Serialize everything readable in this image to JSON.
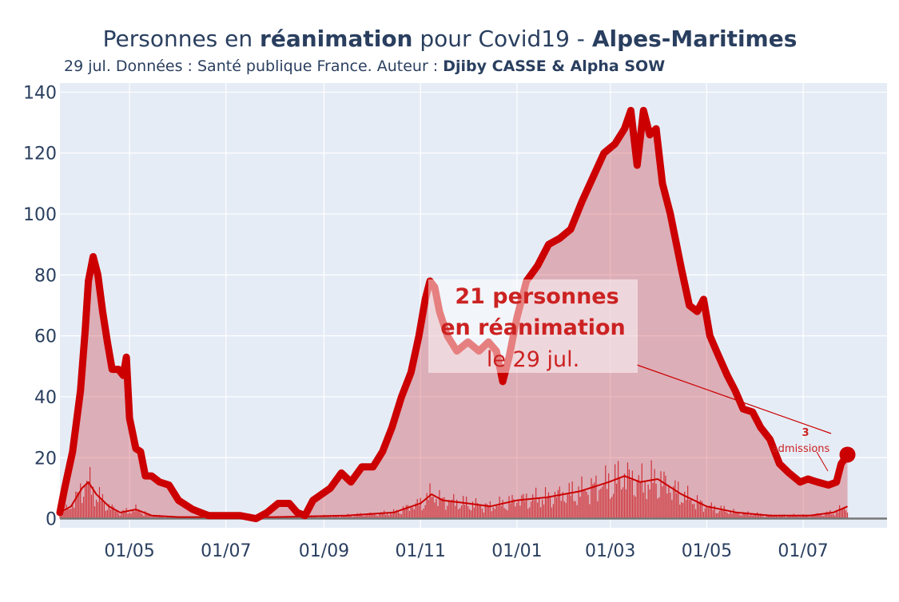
{
  "header": {
    "title_part1": "Personnes en ",
    "title_part2": "réanimation",
    "title_part3": " pour Covid19 - ",
    "title_part4": "Alpes-Maritimes",
    "subtitle_part1": "29 jul. Données : Santé publique France. Auteur : ",
    "subtitle_part2": "Djiby CASSE & Alpha SOW"
  },
  "annotation": {
    "line1": "21 personnes",
    "line2": "en réanimation",
    "line3": "le 29 jul."
  },
  "admissions_annotation": {
    "value": "3",
    "label": "admissions"
  },
  "colors": {
    "main": "#cc0000",
    "fill": "rgba(200,30,40,0.30)",
    "plot_bg": "#e5ecf6",
    "grid": "#ffffff",
    "text": "#2a3f5f"
  },
  "chart_data": {
    "type": "area",
    "title": "Personnes en réanimation pour Covid19 - Alpes-Maritimes",
    "ylim": [
      -3,
      143
    ],
    "yticks": [
      0,
      20,
      40,
      60,
      80,
      100,
      120,
      140
    ],
    "ytick_labels": [
      "0",
      "20",
      "40",
      "60",
      "80",
      "100",
      "120",
      "140"
    ],
    "xlim": [
      "2020-03-18",
      "2021-08-23"
    ],
    "xticks": [
      "2020-05-01",
      "2020-07-01",
      "2020-09-01",
      "2020-11-01",
      "2021-01-01",
      "2021-03-01",
      "2021-05-01",
      "2021-07-01"
    ],
    "xtick_labels": [
      "01/05",
      "01/07",
      "01/09",
      "01/11",
      "01/01",
      "01/03",
      "01/05",
      "01/07"
    ],
    "last_point": {
      "date": "2021-07-29",
      "value": 21
    },
    "series": [
      {
        "key": "reanimation",
        "points": [
          [
            "2020-03-18",
            2
          ],
          [
            "2020-03-21",
            10
          ],
          [
            "2020-03-26",
            22
          ],
          [
            "2020-03-31",
            42
          ],
          [
            "2020-04-03",
            62
          ],
          [
            "2020-04-05",
            78
          ],
          [
            "2020-04-08",
            86
          ],
          [
            "2020-04-11",
            80
          ],
          [
            "2020-04-14",
            68
          ],
          [
            "2020-04-17",
            58
          ],
          [
            "2020-04-20",
            49
          ],
          [
            "2020-04-24",
            49
          ],
          [
            "2020-04-27",
            47
          ],
          [
            "2020-04-29",
            53
          ],
          [
            "2020-05-01",
            33
          ],
          [
            "2020-05-05",
            23
          ],
          [
            "2020-05-08",
            22
          ],
          [
            "2020-05-11",
            14
          ],
          [
            "2020-05-15",
            14
          ],
          [
            "2020-05-20",
            12
          ],
          [
            "2020-05-26",
            11
          ],
          [
            "2020-06-01",
            6
          ],
          [
            "2020-06-10",
            3
          ],
          [
            "2020-06-20",
            1
          ],
          [
            "2020-07-10",
            1
          ],
          [
            "2020-07-20",
            0
          ],
          [
            "2020-07-27",
            2
          ],
          [
            "2020-08-03",
            5
          ],
          [
            "2020-08-10",
            5
          ],
          [
            "2020-08-15",
            2
          ],
          [
            "2020-08-20",
            1
          ],
          [
            "2020-08-25",
            6
          ],
          [
            "2020-09-05",
            10
          ],
          [
            "2020-09-12",
            15
          ],
          [
            "2020-09-18",
            12
          ],
          [
            "2020-09-25",
            17
          ],
          [
            "2020-10-02",
            17
          ],
          [
            "2020-10-08",
            22
          ],
          [
            "2020-10-14",
            30
          ],
          [
            "2020-10-20",
            40
          ],
          [
            "2020-10-26",
            48
          ],
          [
            "2020-10-31",
            60
          ],
          [
            "2020-11-04",
            72
          ],
          [
            "2020-11-07",
            78
          ],
          [
            "2020-11-10",
            76
          ],
          [
            "2020-11-13",
            68
          ],
          [
            "2020-11-18",
            60
          ],
          [
            "2020-11-24",
            55
          ],
          [
            "2020-12-01",
            58
          ],
          [
            "2020-12-08",
            55
          ],
          [
            "2020-12-14",
            58
          ],
          [
            "2020-12-19",
            55
          ],
          [
            "2020-12-23",
            45
          ],
          [
            "2020-12-27",
            53
          ],
          [
            "2021-01-01",
            66
          ],
          [
            "2021-01-07",
            78
          ],
          [
            "2021-01-14",
            83
          ],
          [
            "2021-01-21",
            90
          ],
          [
            "2021-01-28",
            92
          ],
          [
            "2021-02-04",
            95
          ],
          [
            "2021-02-11",
            104
          ],
          [
            "2021-02-18",
            112
          ],
          [
            "2021-02-25",
            120
          ],
          [
            "2021-03-04",
            123
          ],
          [
            "2021-03-10",
            128
          ],
          [
            "2021-03-14",
            134
          ],
          [
            "2021-03-18",
            116
          ],
          [
            "2021-03-22",
            134
          ],
          [
            "2021-03-26",
            126
          ],
          [
            "2021-03-30",
            128
          ],
          [
            "2021-04-03",
            110
          ],
          [
            "2021-04-08",
            100
          ],
          [
            "2021-04-15",
            82
          ],
          [
            "2021-04-20",
            70
          ],
          [
            "2021-04-25",
            68
          ],
          [
            "2021-04-29",
            72
          ],
          [
            "2021-05-03",
            60
          ],
          [
            "2021-05-08",
            54
          ],
          [
            "2021-05-14",
            47
          ],
          [
            "2021-05-19",
            42
          ],
          [
            "2021-05-24",
            36
          ],
          [
            "2021-05-30",
            35
          ],
          [
            "2021-06-04",
            30
          ],
          [
            "2021-06-10",
            26
          ],
          [
            "2021-06-16",
            18
          ],
          [
            "2021-06-22",
            15
          ],
          [
            "2021-06-29",
            12
          ],
          [
            "2021-07-04",
            13
          ],
          [
            "2021-07-10",
            12
          ],
          [
            "2021-07-17",
            11
          ],
          [
            "2021-07-22",
            12
          ],
          [
            "2021-07-25",
            18
          ],
          [
            "2021-07-29",
            21
          ]
        ]
      },
      {
        "key": "admissions_moyenne",
        "points": [
          [
            "2020-03-18",
            2
          ],
          [
            "2020-03-25",
            4
          ],
          [
            "2020-04-01",
            10
          ],
          [
            "2020-04-05",
            12
          ],
          [
            "2020-04-10",
            8
          ],
          [
            "2020-04-18",
            4
          ],
          [
            "2020-04-25",
            2
          ],
          [
            "2020-05-05",
            3
          ],
          [
            "2020-05-15",
            1
          ],
          [
            "2020-06-01",
            0.5
          ],
          [
            "2020-08-01",
            0.5
          ],
          [
            "2020-09-15",
            1
          ],
          [
            "2020-10-15",
            2
          ],
          [
            "2020-11-01",
            5
          ],
          [
            "2020-11-08",
            8
          ],
          [
            "2020-11-15",
            6
          ],
          [
            "2020-12-01",
            5
          ],
          [
            "2020-12-15",
            4
          ],
          [
            "2021-01-01",
            6
          ],
          [
            "2021-01-20",
            7
          ],
          [
            "2021-02-10",
            9
          ],
          [
            "2021-02-28",
            12
          ],
          [
            "2021-03-10",
            14
          ],
          [
            "2021-03-20",
            12
          ],
          [
            "2021-03-31",
            13
          ],
          [
            "2021-04-15",
            8
          ],
          [
            "2021-05-01",
            4
          ],
          [
            "2021-05-20",
            2
          ],
          [
            "2021-06-10",
            1
          ],
          [
            "2021-07-05",
            1
          ],
          [
            "2021-07-20",
            2
          ],
          [
            "2021-07-29",
            4
          ]
        ]
      }
    ]
  }
}
